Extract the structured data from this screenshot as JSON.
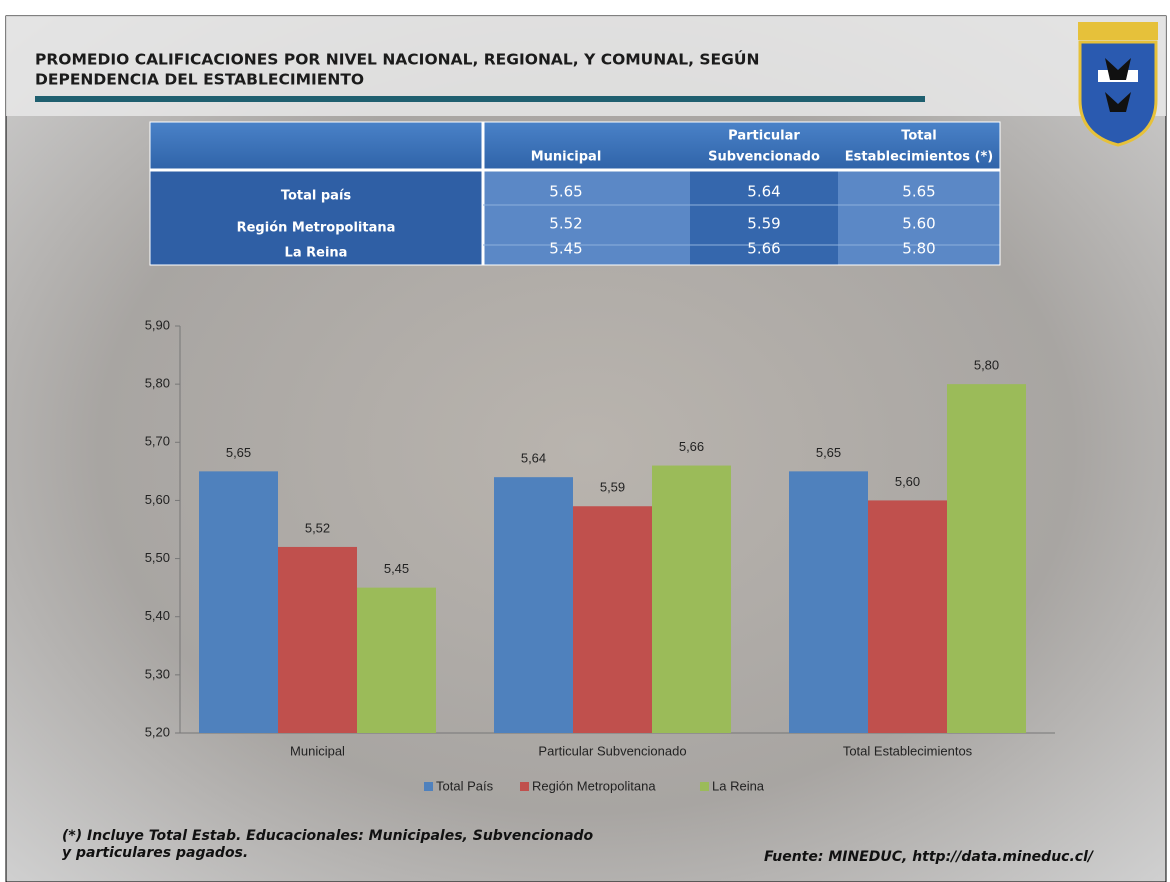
{
  "header": {
    "title": [
      "PROMEDIO CALIFICACIONES POR NIVEL NACIONAL, REGIONAL, Y COMUNAL, SEGÚN",
      "DEPENDENCIA DEL ESTABLECIMIENTO"
    ]
  },
  "table": {
    "columns": [
      "Municipal",
      [
        "Particular",
        "Subvencionado"
      ],
      [
        "Total",
        "Establecimientos (*)"
      ]
    ],
    "rows": [
      [
        "Total país",
        "5.65",
        "5.64",
        "5.65"
      ],
      [
        "Región Metropolitana",
        "5.52",
        "5.59",
        "5.60"
      ],
      [
        "La Reina",
        "5.45",
        "5.66",
        "5.80"
      ]
    ]
  },
  "chart_data": {
    "type": "bar",
    "categories": [
      "Municipal",
      "Particular Subvencionado",
      "Total Establecimientos"
    ],
    "series": [
      {
        "name": "Total País",
        "color": "#4f81bd",
        "values": [
          5.65,
          5.64,
          5.65
        ],
        "value_labels": [
          "5,65",
          "5,64",
          "5,65"
        ]
      },
      {
        "name": "Región Metropolitana",
        "color": "#c0504d",
        "values": [
          5.52,
          5.59,
          5.6
        ],
        "value_labels": [
          "5,52",
          "5,59",
          "5,60"
        ]
      },
      {
        "name": "La Reina",
        "color": "#9bbb59",
        "values": [
          5.45,
          5.66,
          5.8
        ],
        "value_labels": [
          "5,45",
          "5,66",
          "5,80"
        ]
      }
    ],
    "ylim": [
      5.2,
      5.9
    ],
    "yticks": [
      {
        "value": 5.2,
        "label": "5,20"
      },
      {
        "value": 5.3,
        "label": "5,30"
      },
      {
        "value": 5.4,
        "label": "5,40"
      },
      {
        "value": 5.5,
        "label": "5,50"
      },
      {
        "value": 5.6,
        "label": "5,60"
      },
      {
        "value": 5.7,
        "label": "5,70"
      },
      {
        "value": 5.8,
        "label": "5,80"
      },
      {
        "value": 5.9,
        "label": "5,90"
      }
    ],
    "legend": "bottom"
  },
  "footer": {
    "note": [
      "(*) Incluye Total Estab. Educacionales: Municipales, Subvencionado",
      "y particulares pagados."
    ],
    "source": "Fuente: MINEDUC, http://data.mineduc.cl/"
  }
}
